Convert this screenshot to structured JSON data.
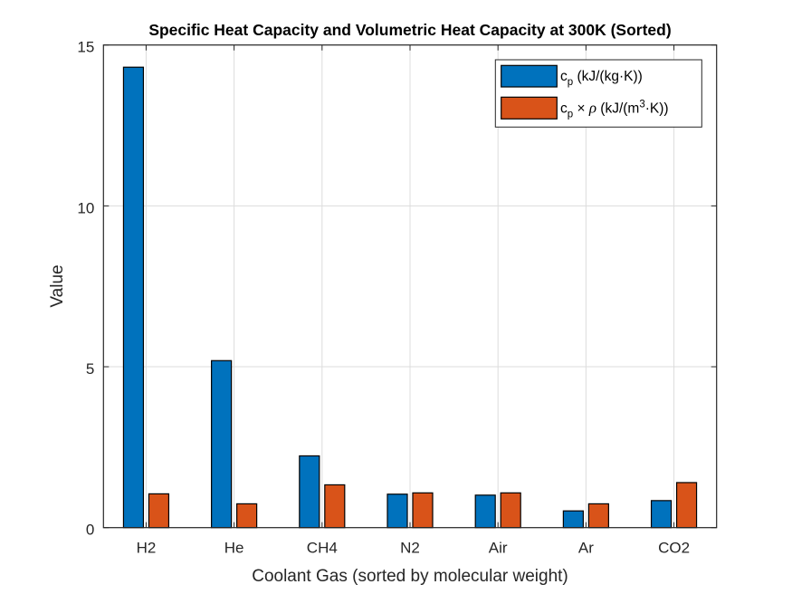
{
  "chart_data": {
    "type": "bar",
    "title": "Specific Heat Capacity and Volumetric Heat Capacity at 300K (Sorted)",
    "xlabel": "Coolant Gas (sorted by molecular weight)",
    "ylabel": "Value",
    "categories": [
      "H2",
      "He",
      "CH4",
      "N2",
      "Air",
      "Ar",
      "CO2"
    ],
    "series": [
      {
        "name": "c_p (kJ/(kg·K))",
        "legend_main": "c",
        "legend_sub": "p",
        "legend_rest": " (kJ/(kg·K))",
        "color": "#0072BD",
        "values": [
          14.31,
          5.19,
          2.23,
          1.04,
          1.01,
          0.52,
          0.84
        ]
      },
      {
        "name": "c_p × ρ (kJ/(m^3·K))",
        "legend_main": "c",
        "legend_sub": "p",
        "legend_mid": " × ",
        "legend_rho": "ρ",
        "legend_rest_a": " (kJ/(m",
        "legend_sup": "3",
        "legend_rest_b": "·K))",
        "color": "#D95319",
        "values": [
          1.05,
          0.74,
          1.33,
          1.08,
          1.08,
          0.74,
          1.4
        ]
      }
    ],
    "ylim": [
      0,
      15
    ],
    "yticks": [
      0,
      5,
      10,
      15
    ],
    "ytick_labels": [
      "0",
      "5",
      "10",
      "15"
    ],
    "grid": true,
    "legend_position": "top-right"
  }
}
